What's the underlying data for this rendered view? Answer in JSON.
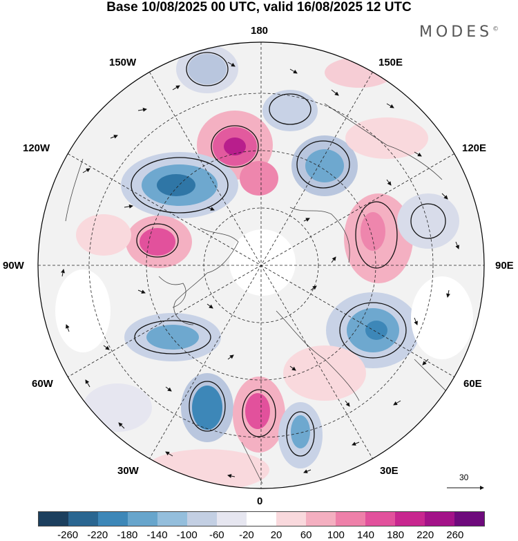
{
  "header": {
    "title": "Base 10/08/2025 00 UTC, valid 16/08/2025 12 UTC",
    "logo": "MODES",
    "logo_mark": "©"
  },
  "map": {
    "longitude_labels": {
      "deg_180": "180",
      "deg_150e": "150E",
      "deg_120e": "120E",
      "deg_90e": "90E",
      "deg_60e": "60E",
      "deg_30e": "30E",
      "deg_0": "0",
      "deg_30w": "30W",
      "deg_60w": "60W",
      "deg_90w": "90W",
      "deg_120w": "120W",
      "deg_150w": "150W"
    },
    "vector_scale_label": "30"
  },
  "colorbar": {
    "colors": [
      "#1c3f5e",
      "#2a6691",
      "#3d87b8",
      "#67a5cc",
      "#94bedc",
      "#c3cfe3",
      "#e6e6f0",
      "#ffffff",
      "#f9d9dd",
      "#f4afc0",
      "#ee80a9",
      "#e2519c",
      "#c8278f",
      "#a31288",
      "#6e0a7c"
    ],
    "ticks": [
      "-260",
      "-220",
      "-180",
      "-140",
      "-100",
      "-60",
      "-20",
      "20",
      "60",
      "100",
      "140",
      "180",
      "220",
      "260"
    ]
  }
}
